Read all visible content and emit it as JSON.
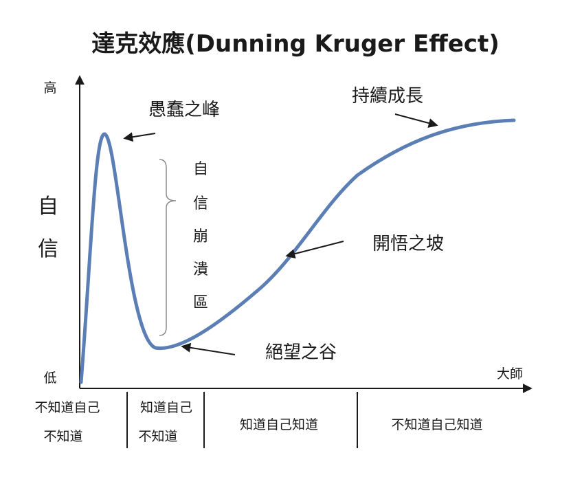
{
  "title": "達克效應(Dunning Kruger Effect)",
  "y_axis": {
    "label_chars": [
      "自",
      "信"
    ],
    "high": "高",
    "low": "低"
  },
  "x_axis": {
    "end_label": "大師"
  },
  "annotations": {
    "peak": "愚蠢之峰",
    "collapse_chars": [
      "自",
      "信",
      "崩",
      "潰",
      "區"
    ],
    "valley": "絕望之谷",
    "slope": "開悟之坡",
    "plateau": "持續成長"
  },
  "stages": [
    {
      "line1": "不知道自己",
      "line2": "不知道"
    },
    {
      "line1": "知道自己",
      "line2": "不知道"
    },
    {
      "line1": "知道自己知道",
      "line2": ""
    },
    {
      "line1": "不知道自己知道",
      "line2": ""
    }
  ],
  "colors": {
    "curve": "#5b7fb5",
    "text": "#1a1a1a",
    "axis": "#1a1a1a",
    "bracket": "#8a8a8a"
  }
}
